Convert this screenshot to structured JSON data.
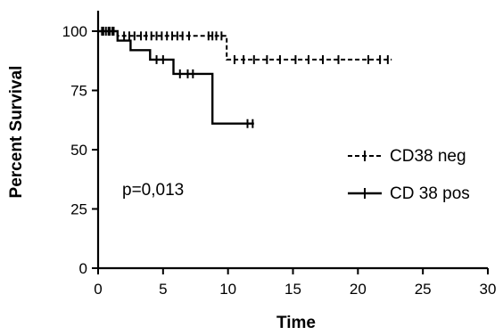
{
  "chart_data": {
    "type": "line",
    "subtype": "kaplan-meier",
    "title": "",
    "xlabel": "Time",
    "ylabel": "Percent Survival",
    "xlim": [
      0,
      30
    ],
    "ylim": [
      0,
      100
    ],
    "xticks": [
      0,
      5,
      10,
      15,
      20,
      25,
      30
    ],
    "yticks": [
      0,
      25,
      50,
      75,
      100
    ],
    "grid": false,
    "legend_position": "right",
    "annotation": "p=0,013",
    "series": [
      {
        "name": "CD38 neg",
        "line_style": "dashed",
        "color": "#000000",
        "steps": [
          [
            0,
            100
          ],
          [
            1.5,
            100
          ],
          [
            1.5,
            98
          ],
          [
            9.9,
            98
          ],
          [
            9.9,
            88
          ],
          [
            22.6,
            88
          ]
        ],
        "censored": [
          [
            0.3,
            100
          ],
          [
            0.6,
            100
          ],
          [
            0.9,
            100
          ],
          [
            1.2,
            100
          ],
          [
            2.0,
            98
          ],
          [
            2.4,
            98
          ],
          [
            2.8,
            98
          ],
          [
            3.3,
            98
          ],
          [
            3.7,
            98
          ],
          [
            4.1,
            98
          ],
          [
            4.5,
            98
          ],
          [
            4.9,
            98
          ],
          [
            5.3,
            98
          ],
          [
            5.7,
            98
          ],
          [
            6.1,
            98
          ],
          [
            6.5,
            98
          ],
          [
            7.0,
            98
          ],
          [
            8.5,
            98
          ],
          [
            8.8,
            98
          ],
          [
            9.1,
            98
          ],
          [
            9.5,
            98
          ],
          [
            10.5,
            88
          ],
          [
            11.2,
            88
          ],
          [
            12.0,
            88
          ],
          [
            13.0,
            88
          ],
          [
            14.0,
            88
          ],
          [
            15.2,
            88
          ],
          [
            16.2,
            88
          ],
          [
            17.3,
            88
          ],
          [
            18.5,
            88
          ],
          [
            20.8,
            88
          ],
          [
            21.7,
            88
          ],
          [
            22.3,
            88
          ]
        ]
      },
      {
        "name": "CD 38 pos",
        "line_style": "solid",
        "color": "#000000",
        "steps": [
          [
            0,
            100
          ],
          [
            1.5,
            100
          ],
          [
            1.5,
            96
          ],
          [
            2.5,
            96
          ],
          [
            2.5,
            92
          ],
          [
            4.0,
            92
          ],
          [
            4.0,
            88
          ],
          [
            5.8,
            88
          ],
          [
            5.8,
            82
          ],
          [
            8.8,
            82
          ],
          [
            8.8,
            61
          ],
          [
            12.0,
            61
          ]
        ],
        "censored": [
          [
            0.4,
            100
          ],
          [
            0.8,
            100
          ],
          [
            1.1,
            100
          ],
          [
            4.5,
            88
          ],
          [
            5.0,
            88
          ],
          [
            6.3,
            82
          ],
          [
            6.9,
            82
          ],
          [
            7.3,
            82
          ],
          [
            11.5,
            61
          ],
          [
            11.9,
            61
          ]
        ]
      }
    ]
  }
}
